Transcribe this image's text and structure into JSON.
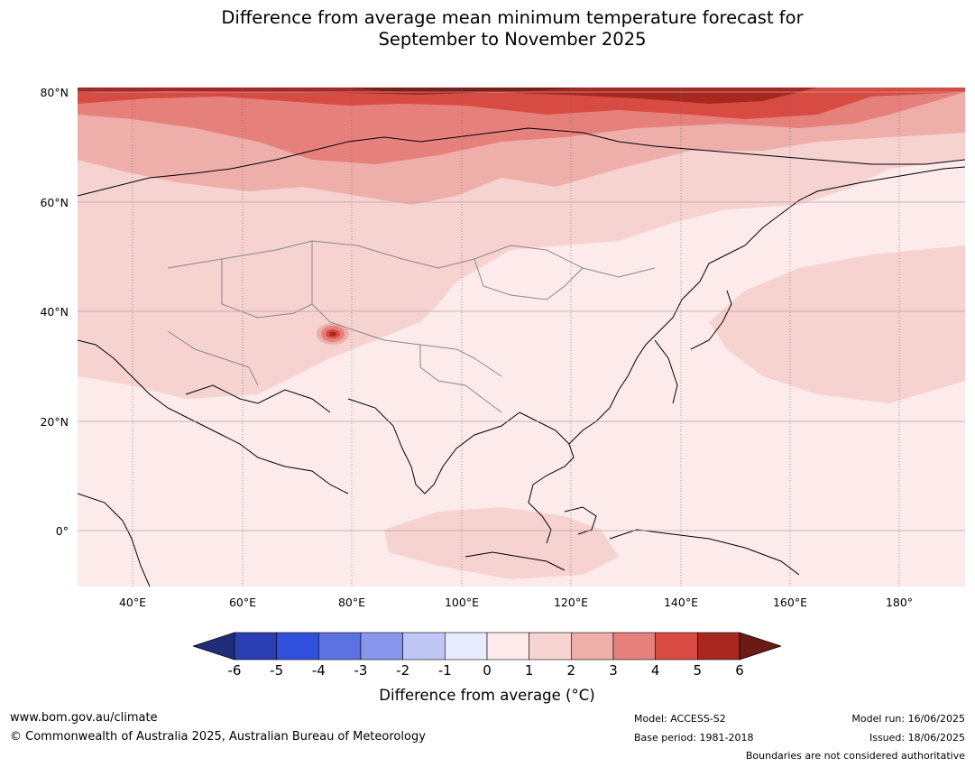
{
  "title": {
    "line1": "Difference from average mean minimum temperature forecast for",
    "line2": "September to November 2025"
  },
  "map": {
    "lat_labels": [
      "80°N",
      "60°N",
      "40°N",
      "20°N",
      "0°"
    ],
    "lon_labels": [
      "40°E",
      "60°E",
      "80°E",
      "100°E",
      "120°E",
      "140°E",
      "160°E",
      "180°"
    ],
    "region": "Asia"
  },
  "colorbar": {
    "ticks": [
      "-6",
      "-5",
      "-4",
      "-3",
      "-2",
      "-1",
      "0",
      "1",
      "2",
      "3",
      "4",
      "5",
      "6"
    ],
    "colors": [
      "#1f2d7a",
      "#2a3eb1",
      "#3050dc",
      "#5c72e3",
      "#8897ec",
      "#bfc6f4",
      "#e8ebfb",
      "#fcebea",
      "#f6d2d0",
      "#eeaeaa",
      "#e6807b",
      "#d84b43",
      "#a8281f",
      "#6b1a15"
    ],
    "label": "Difference from average (°C)"
  },
  "footer": {
    "website": "www.bom.gov.au/climate",
    "copyright": "© Commonwealth of Australia 2025, Australian Bureau of Meteorology",
    "model": "Model: ACCESS-S2",
    "base_period": "Base period: 1981-2018",
    "model_run": "Model run: 16/06/2025",
    "issued": "Issued: 18/06/2025",
    "disclaimer": "Boundaries are not considered authoritative"
  }
}
